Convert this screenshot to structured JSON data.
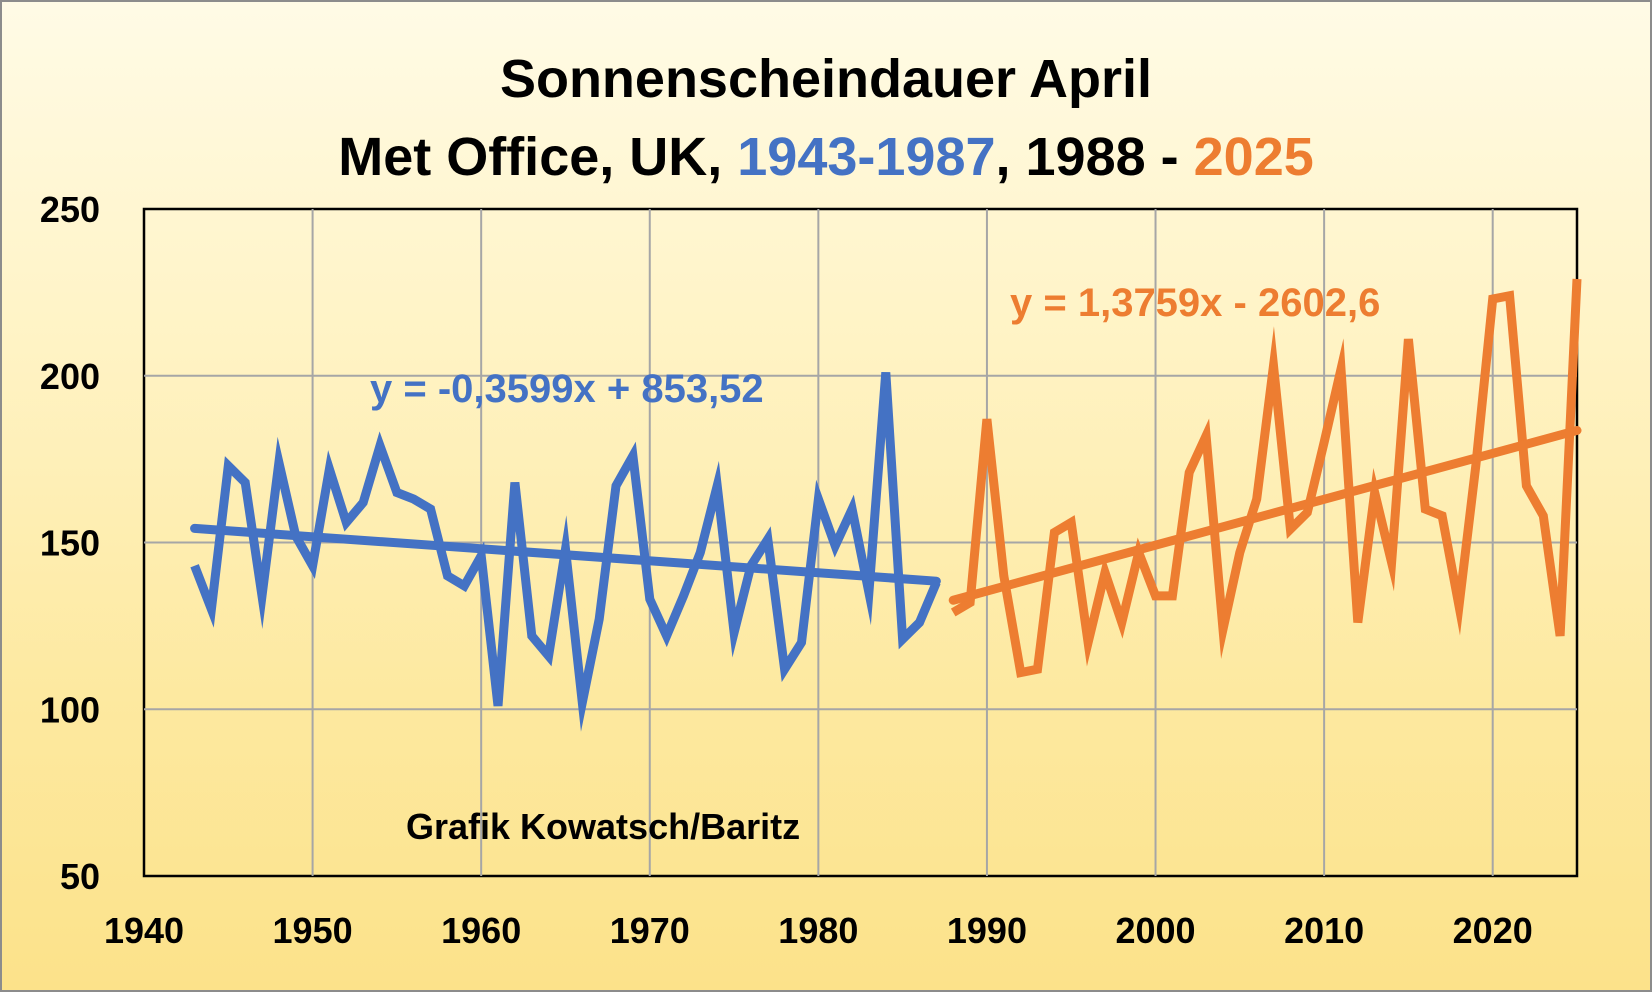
{
  "chart_data": {
    "type": "line",
    "title": {
      "line1": "Sonnenscheindauer April",
      "line2_prefix": "Met Office, UK, ",
      "line2_blue": "1943-1987",
      "line2_mid": ", 1988 - ",
      "line2_orange": "2025"
    },
    "xlabel": "",
    "ylabel": "",
    "xlim": [
      1940,
      2025
    ],
    "ylim": [
      50,
      250
    ],
    "x_ticks": [
      1940,
      1950,
      1960,
      1970,
      1980,
      1990,
      2000,
      2010,
      2020
    ],
    "y_ticks": [
      50,
      100,
      150,
      200,
      250
    ],
    "grid": true,
    "colors": {
      "blue": "#4472c4",
      "orange": "#ed7d31"
    },
    "series": [
      {
        "color": "#4472c4",
        "x": [
          1943,
          1944,
          1945,
          1946,
          1947,
          1948,
          1949,
          1950,
          1951,
          1952,
          1953,
          1954,
          1955,
          1956,
          1957,
          1958,
          1959,
          1960,
          1961,
          1962,
          1963,
          1964,
          1965,
          1966,
          1967,
          1968,
          1969,
          1970,
          1971,
          1972,
          1973,
          1974,
          1975,
          1976,
          1977,
          1978,
          1979,
          1980,
          1981,
          1982,
          1983,
          1984,
          1985,
          1986,
          1987
        ],
        "values": [
          143,
          130,
          173,
          168,
          134,
          174,
          152,
          143,
          172,
          156,
          162,
          179,
          165,
          163,
          160,
          140,
          137,
          146,
          101,
          168,
          122,
          116,
          148,
          102,
          127,
          167,
          176,
          133,
          122,
          134,
          147,
          167,
          123,
          143,
          151,
          112,
          120,
          163,
          149,
          160,
          135,
          201,
          121,
          126,
          138
        ]
      },
      {
        "color": "#ed7d31",
        "x": [
          1988,
          1989,
          1990,
          1991,
          1992,
          1993,
          1994,
          1995,
          1996,
          1997,
          1998,
          1999,
          2000,
          2001,
          2002,
          2003,
          2004,
          2005,
          2006,
          2007,
          2008,
          2009,
          2010,
          2011,
          2012,
          2013,
          2014,
          2015,
          2016,
          2017,
          2018,
          2019,
          2020,
          2021,
          2022,
          2023,
          2024,
          2025
        ],
        "values": [
          129,
          132,
          187,
          140,
          111,
          112,
          153,
          156,
          120,
          141,
          126,
          147,
          134,
          134,
          171,
          182,
          124,
          147,
          163,
          203,
          154,
          159,
          180,
          202,
          126,
          165,
          144,
          211,
          160,
          158,
          131,
          173,
          223,
          224,
          167,
          158,
          122,
          229
        ]
      }
    ],
    "trendlines": [
      {
        "color": "#4472c4",
        "x_range": [
          1943,
          1987
        ],
        "equation": "y = -0,3599x + 853,52"
      },
      {
        "color": "#ed7d31",
        "x_range": [
          1988,
          2025
        ],
        "equation": "y = 1,3759x - 2602,6"
      }
    ],
    "annotation": "Grafik Kowatsch/Baritz"
  }
}
